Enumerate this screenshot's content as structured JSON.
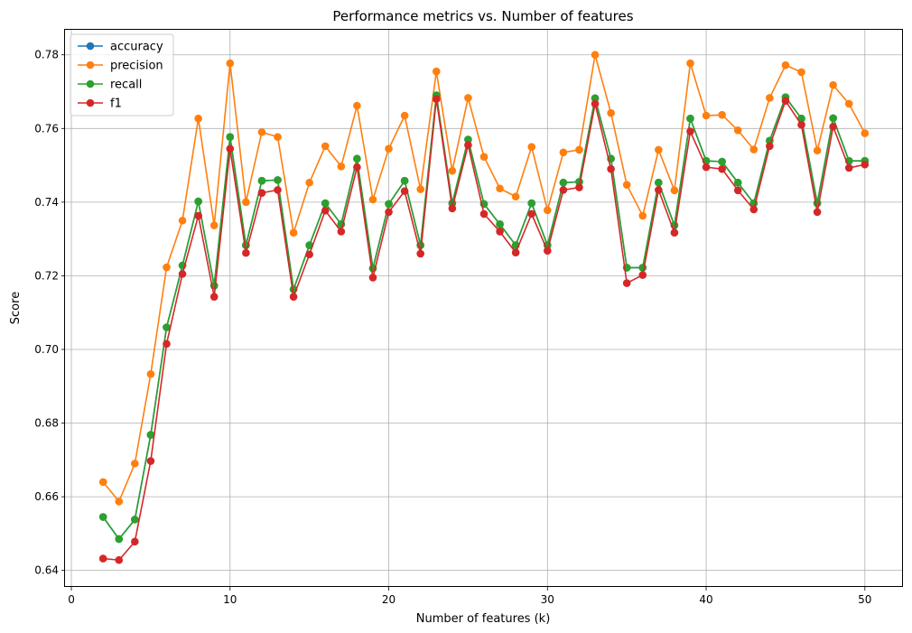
{
  "chart_data": {
    "type": "line",
    "title": "Performance metrics vs. Number of features",
    "xlabel": "Number of features (k)",
    "ylabel": "Score",
    "xlim": [
      -0.4,
      52.4
    ],
    "ylim": [
      0.6355,
      0.7868
    ],
    "xticks": [
      0,
      10,
      20,
      30,
      40,
      50
    ],
    "yticks": [
      0.64,
      0.66,
      0.68,
      0.7,
      0.72,
      0.74,
      0.76,
      0.78
    ],
    "ytick_labels": [
      "0.64",
      "0.66",
      "0.68",
      "0.70",
      "0.72",
      "0.74",
      "0.76",
      "0.78"
    ],
    "grid": true,
    "legend_position": "top-left",
    "x": [
      2,
      3,
      4,
      5,
      6,
      7,
      8,
      9,
      10,
      11,
      12,
      13,
      14,
      15,
      16,
      17,
      18,
      19,
      20,
      21,
      22,
      23,
      24,
      25,
      26,
      27,
      28,
      29,
      30,
      31,
      32,
      33,
      34,
      35,
      36,
      37,
      38,
      39,
      40,
      41,
      42,
      43,
      44,
      45,
      46,
      47,
      48,
      49,
      50
    ],
    "series": [
      {
        "name": "accuracy",
        "color": "#1f77b4",
        "values": [
          0.6545,
          0.6485,
          0.6538,
          0.6768,
          0.706,
          0.7228,
          0.7402,
          0.7173,
          0.7577,
          0.7283,
          0.7458,
          0.746,
          0.7163,
          0.7283,
          0.7397,
          0.734,
          0.7518,
          0.722,
          0.7395,
          0.7458,
          0.7283,
          0.769,
          0.7397,
          0.757,
          0.7395,
          0.734,
          0.7283,
          0.7397,
          0.7283,
          0.7453,
          0.7455,
          0.7682,
          0.7518,
          0.7222,
          0.7222,
          0.7453,
          0.7337,
          0.7627,
          0.7512,
          0.751,
          0.7453,
          0.7397,
          0.7567,
          0.7685,
          0.7627,
          0.7397,
          0.7628,
          0.7512,
          0.7512
        ]
      },
      {
        "name": "precision",
        "color": "#ff7f0e",
        "values": [
          0.664,
          0.6587,
          0.669,
          0.6933,
          0.7223,
          0.735,
          0.7627,
          0.7337,
          0.7777,
          0.74,
          0.759,
          0.7577,
          0.7317,
          0.7453,
          0.7552,
          0.7497,
          0.7662,
          0.7407,
          0.7545,
          0.7635,
          0.7435,
          0.7755,
          0.7485,
          0.7683,
          0.7523,
          0.7437,
          0.7415,
          0.755,
          0.7378,
          0.7535,
          0.7542,
          0.78,
          0.7642,
          0.7447,
          0.7363,
          0.7542,
          0.7432,
          0.7777,
          0.7635,
          0.7637,
          0.7595,
          0.7543,
          0.7683,
          0.7772,
          0.7753,
          0.754,
          0.7718,
          0.7667,
          0.7587
        ]
      },
      {
        "name": "recall",
        "color": "#2ca02c",
        "values": [
          0.6545,
          0.6485,
          0.6538,
          0.6768,
          0.706,
          0.7228,
          0.7402,
          0.7173,
          0.7577,
          0.7283,
          0.7458,
          0.746,
          0.7163,
          0.7283,
          0.7397,
          0.734,
          0.7518,
          0.722,
          0.7395,
          0.7458,
          0.7283,
          0.769,
          0.7397,
          0.757,
          0.7395,
          0.734,
          0.7283,
          0.7397,
          0.7283,
          0.7453,
          0.7455,
          0.7682,
          0.7518,
          0.7222,
          0.7222,
          0.7453,
          0.7337,
          0.7627,
          0.7512,
          0.751,
          0.7453,
          0.7397,
          0.7567,
          0.7685,
          0.7627,
          0.7397,
          0.7628,
          0.7512,
          0.7512
        ]
      },
      {
        "name": "f1",
        "color": "#d62728",
        "values": [
          0.6432,
          0.6428,
          0.6478,
          0.6697,
          0.7015,
          0.7205,
          0.7363,
          0.7143,
          0.7545,
          0.7262,
          0.7425,
          0.7433,
          0.7143,
          0.7258,
          0.7377,
          0.732,
          0.7495,
          0.7195,
          0.7373,
          0.743,
          0.726,
          0.768,
          0.7383,
          0.7555,
          0.7368,
          0.732,
          0.7263,
          0.7368,
          0.7268,
          0.7433,
          0.744,
          0.7667,
          0.749,
          0.718,
          0.7202,
          0.7433,
          0.7317,
          0.7592,
          0.7495,
          0.749,
          0.7432,
          0.738,
          0.7552,
          0.7675,
          0.761,
          0.7373,
          0.7605,
          0.7493,
          0.7502
        ]
      }
    ]
  }
}
